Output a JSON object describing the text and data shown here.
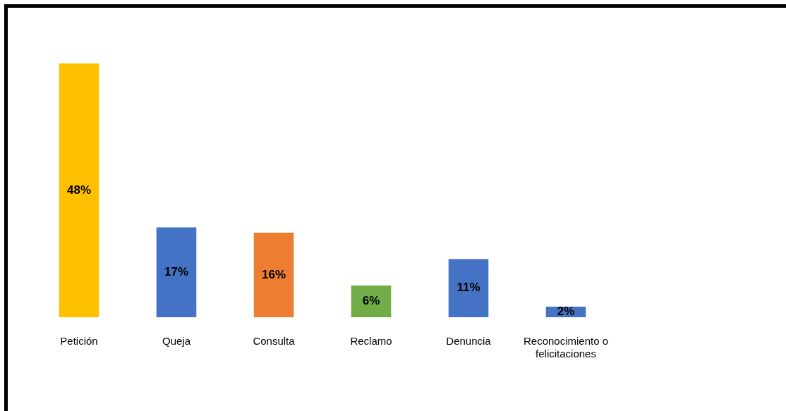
{
  "chart_data": {
    "type": "bar",
    "categories": [
      "Petición",
      "Queja",
      "Consulta",
      "Reclamo",
      "Denuncia",
      "Reconocimiento o felicitaciones"
    ],
    "values": [
      48,
      17,
      16,
      6,
      11,
      2
    ],
    "colors": [
      "#ffc000",
      "#4472c4",
      "#ed7d31",
      "#70ad47",
      "#4472c4",
      "#4472c4"
    ],
    "value_labels": [
      "48%",
      "17%",
      "16%",
      "6%",
      "11%",
      "2%"
    ],
    "grid": false,
    "legend": false
  }
}
